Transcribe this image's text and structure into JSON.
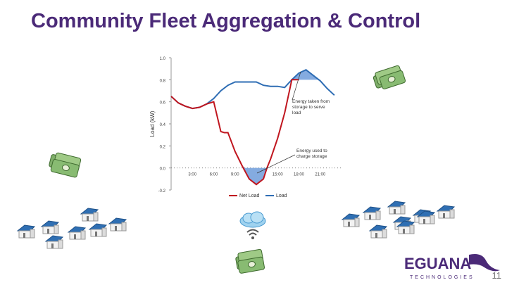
{
  "slide": {
    "title": "Community Fleet Aggregation & Control",
    "page_number": "11"
  },
  "logo": {
    "brand": "EGUANA",
    "sub": "TECHNOLOGIES",
    "color": "#4b2a78"
  },
  "colors": {
    "title": "#4b2a78",
    "net_load": "#c0161f",
    "load": "#2e6db4",
    "fill": "#5b8fd6"
  },
  "icons": [
    "money-stack-icon",
    "house-icon",
    "cloud-wifi-icon"
  ],
  "chart_data": {
    "type": "line",
    "title": "",
    "xlabel": "",
    "ylabel": "Load (kW)",
    "ylim": [
      -0.2,
      1.0
    ],
    "xlim": [
      0,
      24
    ],
    "y_ticks": [
      "1.0",
      "0.8",
      "0.6",
      "0.4",
      "0.2",
      "0.0",
      "-0.2"
    ],
    "y_tick_values": [
      1.0,
      0.8,
      0.6,
      0.4,
      0.2,
      0.0,
      -0.2
    ],
    "x_ticks": [
      "3:00",
      "6:00",
      "9:00",
      "15:00",
      "18:00",
      "21:00"
    ],
    "x_tick_values": [
      3,
      6,
      9,
      15,
      18,
      21
    ],
    "legend": [
      "Net Load",
      "Load"
    ],
    "legend_position": "bottom",
    "annotations": [
      "Energy taken from storage to serve load",
      "Energy used to charge storage"
    ],
    "series": [
      {
        "name": "Net Load",
        "x": [
          0,
          1,
          2,
          3,
          4,
          5,
          6,
          7,
          7.5,
          8,
          9,
          10,
          11,
          12,
          13,
          13.5,
          14,
          15,
          16,
          17,
          18
        ],
        "values": [
          0.65,
          0.59,
          0.56,
          0.54,
          0.55,
          0.58,
          0.6,
          0.33,
          0.32,
          0.32,
          0.15,
          0.02,
          -0.1,
          -0.15,
          -0.1,
          0.0,
          0.08,
          0.27,
          0.5,
          0.8,
          0.8
        ]
      },
      {
        "name": "Load",
        "x": [
          0,
          1,
          2,
          3,
          4,
          5,
          6,
          7,
          8,
          9,
          10,
          11,
          12,
          13,
          14,
          15,
          16,
          17,
          18,
          19,
          20,
          21,
          22,
          23
        ],
        "values": [
          0.65,
          0.59,
          0.56,
          0.54,
          0.55,
          0.58,
          0.63,
          0.7,
          0.75,
          0.78,
          0.78,
          0.78,
          0.78,
          0.75,
          0.74,
          0.74,
          0.73,
          0.8,
          0.86,
          0.89,
          0.84,
          0.79,
          0.72,
          0.66
        ]
      }
    ]
  }
}
